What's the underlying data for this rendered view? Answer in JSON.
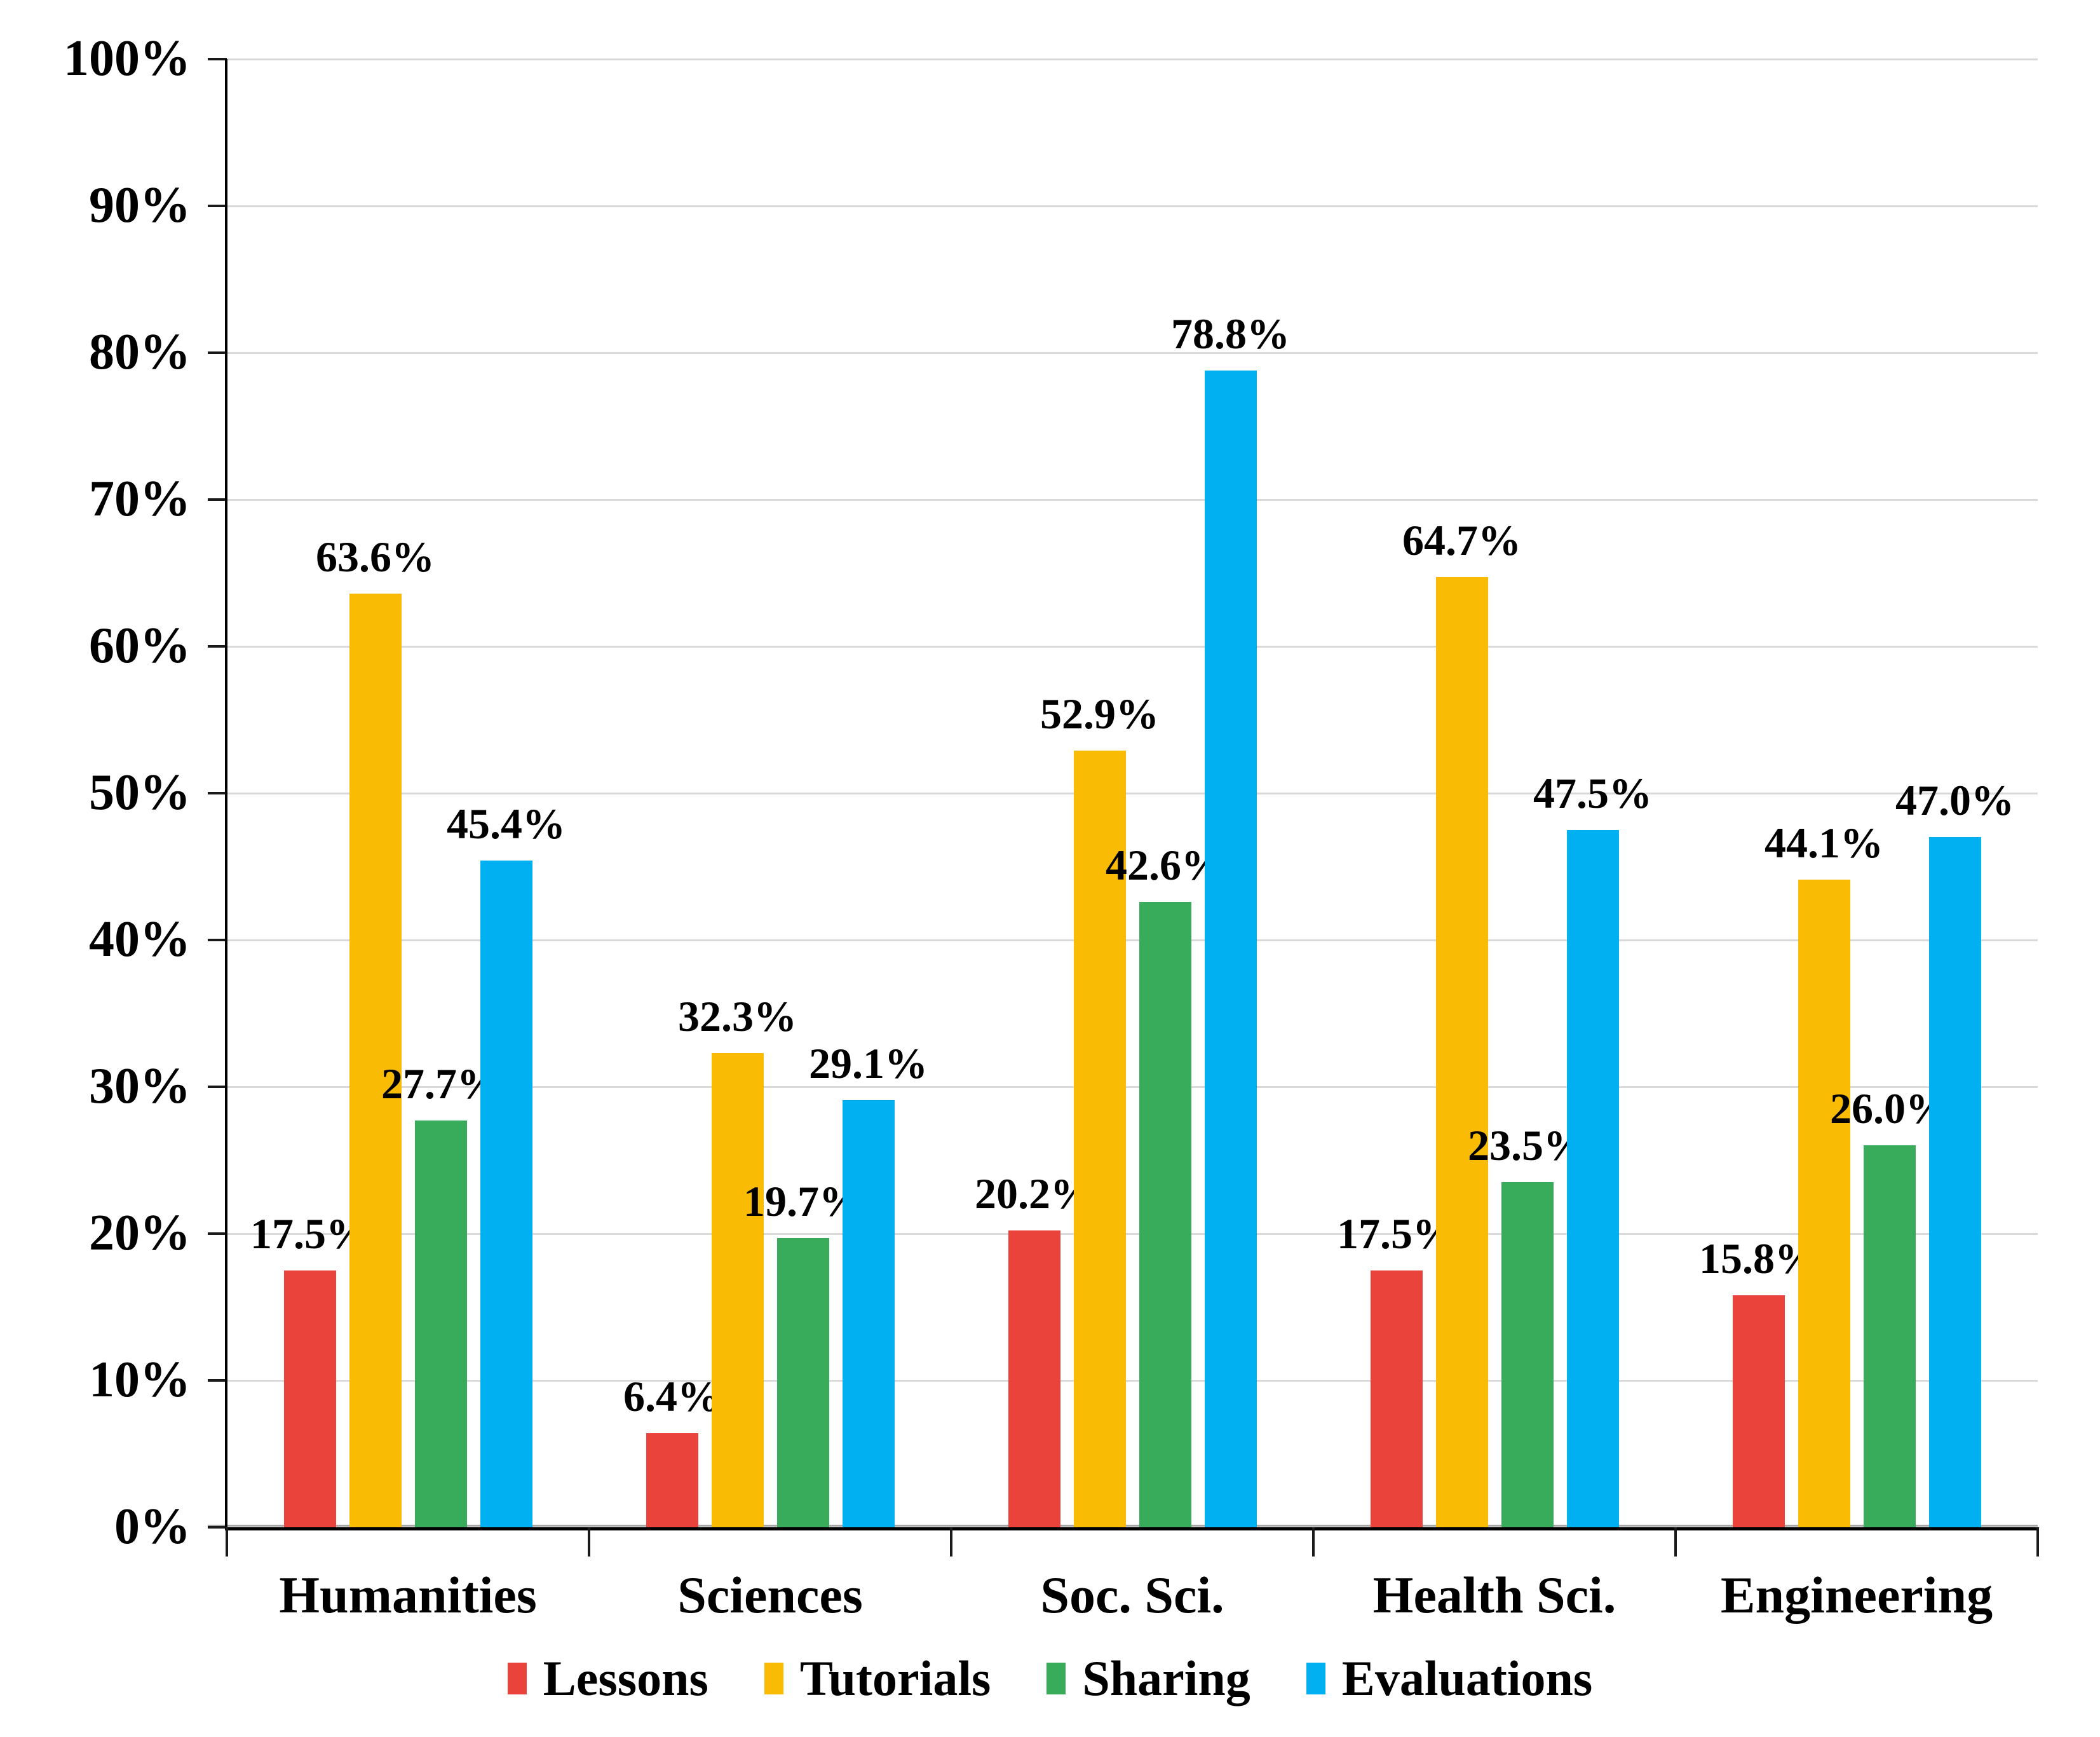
{
  "chart_data": {
    "type": "bar",
    "title": "",
    "categories": [
      "Humanities",
      "Sciences",
      "Soc. Sci.",
      "Health Sci.",
      "Engineering"
    ],
    "series": [
      {
        "name": "Lessons",
        "color": "#E9433C",
        "values": [
          17.5,
          6.4,
          20.2,
          17.5,
          15.8
        ]
      },
      {
        "name": "Tutorials",
        "color": "#FABB04",
        "values": [
          63.6,
          32.3,
          52.9,
          64.7,
          44.1
        ]
      },
      {
        "name": "Sharing",
        "color": "#39AC5B",
        "values": [
          27.7,
          19.7,
          42.6,
          23.5,
          26.0
        ]
      },
      {
        "name": "Evaluations",
        "color": "#00B0F0",
        "values": [
          45.4,
          29.1,
          78.8,
          47.5,
          47.0
        ]
      }
    ],
    "data_labels": {
      "visible": true,
      "format": "one_decimal_percent",
      "position": "outside_end"
    },
    "xlabel": "",
    "ylabel": "",
    "y_axis": {
      "min": 0,
      "max": 100,
      "step": 10,
      "tick_labels": [
        "0%",
        "10%",
        "20%",
        "30%",
        "40%",
        "50%",
        "60%",
        "70%",
        "80%",
        "90%",
        "100%"
      ]
    },
    "grid": true,
    "legend_position": "bottom"
  },
  "colors": {
    "background": "#FFFFFF",
    "gridline": "#D9D9D9",
    "zero_gridline": "#A6A6A6",
    "axis": "#000000",
    "text": "#000000"
  }
}
